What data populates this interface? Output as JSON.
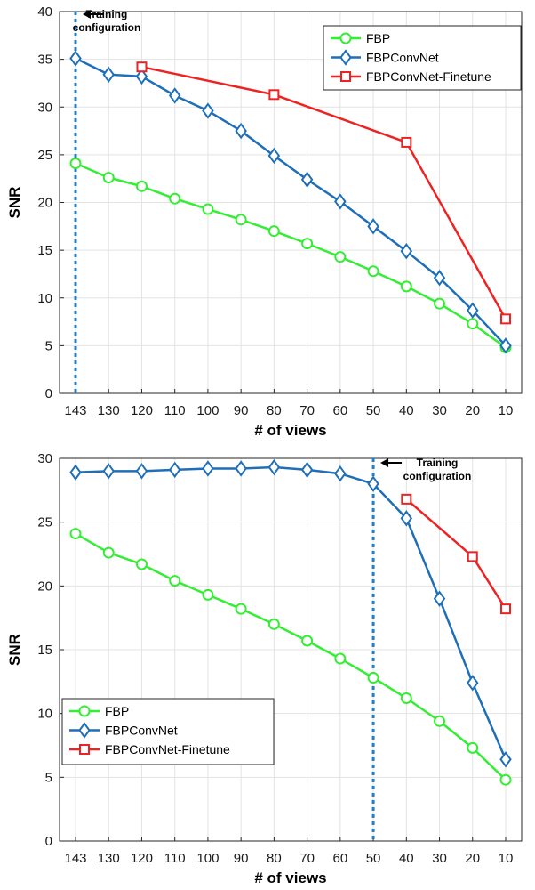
{
  "chart_data": [
    {
      "type": "line",
      "categories": [
        "143",
        "130",
        "120",
        "110",
        "100",
        "90",
        "80",
        "70",
        "60",
        "50",
        "40",
        "30",
        "20",
        "10"
      ],
      "xlabel": "# of views",
      "ylabel": "SNR",
      "ylim": [
        0,
        40
      ],
      "yticks": [
        "0",
        "5",
        "10",
        "15",
        "20",
        "25",
        "30",
        "35",
        "40"
      ],
      "grid": true,
      "legend_position": "top-right",
      "series": [
        {
          "name": "FBP",
          "color": "#33ee33",
          "marker": "circle",
          "values": [
            24.1,
            22.6,
            21.7,
            20.4,
            19.3,
            18.2,
            17.0,
            15.7,
            14.3,
            12.8,
            11.2,
            9.4,
            7.3,
            4.8
          ]
        },
        {
          "name": "FBPConvNet",
          "color": "#1f6fb8",
          "marker": "diamond",
          "values": [
            35.1,
            33.4,
            33.2,
            31.2,
            29.6,
            27.5,
            24.9,
            22.4,
            20.1,
            17.5,
            14.9,
            12.1,
            8.7,
            5.0
          ]
        },
        {
          "name": "FBPConvNet-Finetune",
          "color": "#ee2222",
          "marker": "square",
          "values": [
            null,
            null,
            34.2,
            null,
            null,
            null,
            31.3,
            null,
            null,
            null,
            26.3,
            null,
            null,
            7.8
          ]
        }
      ],
      "reference_line": {
        "at_category": "143",
        "style": "dashed",
        "color": "#1f7fc8"
      },
      "annotation": {
        "line1": "Training",
        "line2": "configuration",
        "arrow_direction": "left"
      }
    },
    {
      "type": "line",
      "categories": [
        "143",
        "130",
        "120",
        "110",
        "100",
        "90",
        "80",
        "70",
        "60",
        "50",
        "40",
        "30",
        "20",
        "10"
      ],
      "xlabel": "# of views",
      "ylabel": "SNR",
      "ylim": [
        0,
        30
      ],
      "yticks": [
        "0",
        "5",
        "10",
        "15",
        "20",
        "25",
        "30"
      ],
      "grid": true,
      "legend_position": "bottom-left",
      "series": [
        {
          "name": "FBP",
          "color": "#33ee33",
          "marker": "circle",
          "values": [
            24.1,
            22.6,
            21.7,
            20.4,
            19.3,
            18.2,
            17.0,
            15.7,
            14.3,
            12.8,
            11.2,
            9.4,
            7.3,
            4.8
          ]
        },
        {
          "name": "FBPConvNet",
          "color": "#1f6fb8",
          "marker": "diamond",
          "values": [
            28.9,
            29.0,
            29.0,
            29.1,
            29.2,
            29.2,
            29.3,
            29.1,
            28.8,
            28.0,
            25.3,
            19.0,
            12.4,
            6.4
          ]
        },
        {
          "name": "FBPConvNet-Finetune",
          "color": "#ee2222",
          "marker": "square",
          "values": [
            null,
            null,
            null,
            null,
            null,
            null,
            null,
            null,
            null,
            null,
            26.8,
            null,
            22.3,
            18.2
          ]
        }
      ],
      "reference_line": {
        "at_category": "50",
        "style": "dashed",
        "color": "#1f7fc8"
      },
      "annotation": {
        "line1": "Training",
        "line2": "configuration",
        "arrow_direction": "left"
      }
    }
  ]
}
